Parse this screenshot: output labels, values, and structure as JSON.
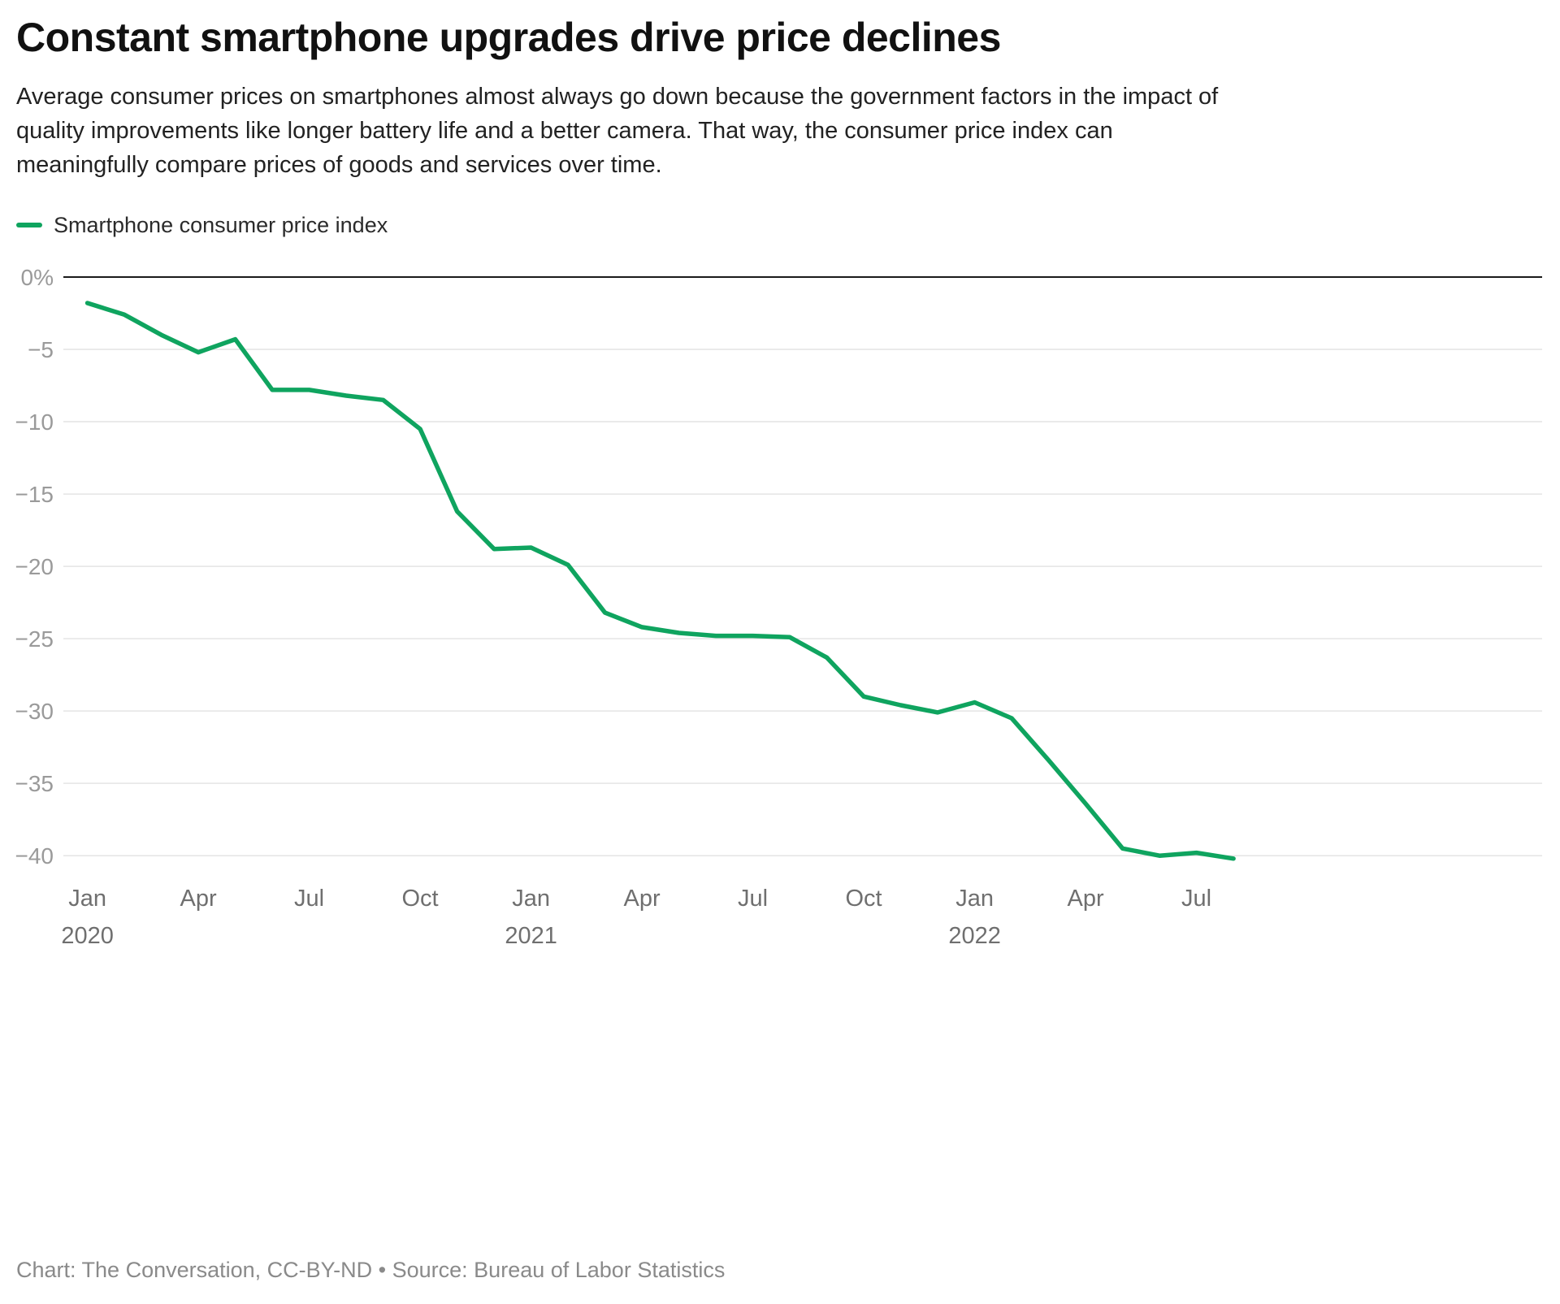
{
  "chart_data": {
    "type": "line",
    "title": "Constant smartphone upgrades drive price declines",
    "subtitle": "Average consumer prices on smartphones almost always go down because the government factors in the impact of quality improvements like longer battery life and a better camera. That way, the consumer price index can meaningfully compare prices of goods and services over time.",
    "legend": "Smartphone consumer price index",
    "legend_position": "top-left",
    "line_color": "#0fa45f",
    "grid": true,
    "ylim": [
      -41,
      0
    ],
    "unit": "%",
    "x": [
      "Jan 2020",
      "Feb 2020",
      "Mar 2020",
      "Apr 2020",
      "May 2020",
      "Jun 2020",
      "Jul 2020",
      "Aug 2020",
      "Sep 2020",
      "Oct 2020",
      "Nov 2020",
      "Dec 2020",
      "Jan 2021",
      "Feb 2021",
      "Mar 2021",
      "Apr 2021",
      "May 2021",
      "Jun 2021",
      "Jul 2021",
      "Aug 2021",
      "Sep 2021",
      "Oct 2021",
      "Nov 2021",
      "Dec 2021",
      "Jan 2022",
      "Feb 2022",
      "Mar 2022",
      "Apr 2022",
      "May 2022",
      "Jun 2022",
      "Jul 2022",
      "Aug 2022"
    ],
    "values": [
      -1.8,
      -2.6,
      -4.0,
      -5.2,
      -4.3,
      -7.8,
      -7.8,
      -8.2,
      -8.5,
      -10.5,
      -16.2,
      -18.8,
      -18.7,
      -19.9,
      -23.2,
      -24.2,
      -24.6,
      -24.8,
      -24.8,
      -24.9,
      -26.3,
      -29.0,
      -29.6,
      -30.1,
      -29.4,
      -30.5,
      -33.4,
      -36.4,
      -39.5,
      -40.0,
      -39.8,
      -40.2
    ],
    "yticks": [
      {
        "v": 0,
        "label": "0%"
      },
      {
        "v": -5,
        "label": "−5"
      },
      {
        "v": -10,
        "label": "−10"
      },
      {
        "v": -15,
        "label": "−15"
      },
      {
        "v": -20,
        "label": "−20"
      },
      {
        "v": -25,
        "label": "−25"
      },
      {
        "v": -30,
        "label": "−30"
      },
      {
        "v": -35,
        "label": "−35"
      },
      {
        "v": -40,
        "label": "−40"
      }
    ],
    "xticks": [
      {
        "i": 0,
        "label": "Jan",
        "year": "2020"
      },
      {
        "i": 3,
        "label": "Apr"
      },
      {
        "i": 6,
        "label": "Jul"
      },
      {
        "i": 9,
        "label": "Oct"
      },
      {
        "i": 12,
        "label": "Jan",
        "year": "2021"
      },
      {
        "i": 15,
        "label": "Apr"
      },
      {
        "i": 18,
        "label": "Jul"
      },
      {
        "i": 21,
        "label": "Oct"
      },
      {
        "i": 24,
        "label": "Jan",
        "year": "2022"
      },
      {
        "i": 27,
        "label": "Apr"
      },
      {
        "i": 30,
        "label": "Jul"
      }
    ]
  },
  "footer": {
    "text": "Chart: The Conversation, CC-BY-ND • Source: Bureau of Labor Statistics"
  }
}
